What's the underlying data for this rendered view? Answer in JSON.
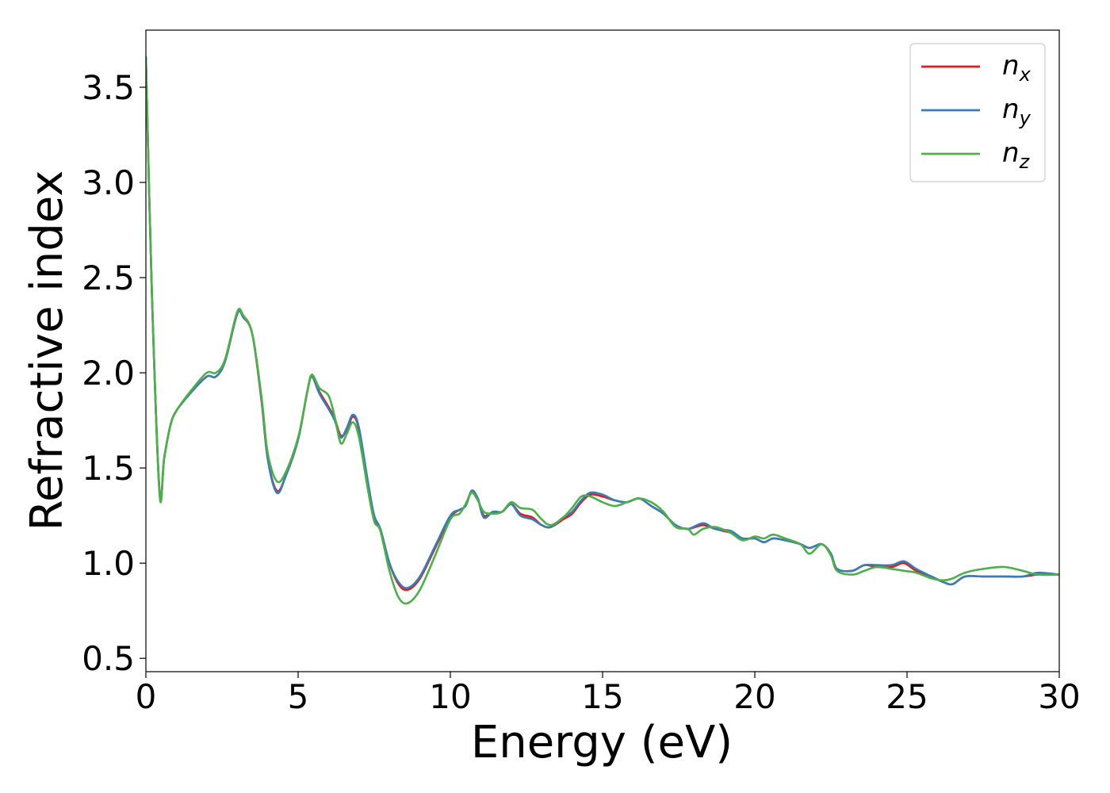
{
  "chart_data": {
    "type": "line",
    "title": "",
    "xlabel": "Energy (eV)",
    "ylabel": "Refractive index",
    "xlim": [
      0,
      30
    ],
    "ylim": [
      0.43,
      3.8
    ],
    "xticks": [
      "0",
      "5",
      "10",
      "15",
      "20",
      "25",
      "30"
    ],
    "yticks": [
      "0.5",
      "1.0",
      "1.5",
      "2.0",
      "2.5",
      "3.0",
      "3.5"
    ],
    "grid": false,
    "legend_position": "top-right",
    "series": [
      {
        "name": "n",
        "subscript": "x",
        "color": "#e41a1c",
        "points": [
          [
            0,
            3.65
          ],
          [
            0.2,
            2.4
          ],
          [
            0.45,
            1.37
          ],
          [
            0.6,
            1.55
          ],
          [
            0.8,
            1.72
          ],
          [
            1.0,
            1.8
          ],
          [
            1.5,
            1.9
          ],
          [
            2.0,
            1.98
          ],
          [
            2.3,
            1.98
          ],
          [
            2.6,
            2.06
          ],
          [
            3.0,
            2.31
          ],
          [
            3.2,
            2.3
          ],
          [
            3.5,
            2.2
          ],
          [
            3.8,
            1.85
          ],
          [
            4.0,
            1.55
          ],
          [
            4.3,
            1.38
          ],
          [
            4.6,
            1.46
          ],
          [
            5.0,
            1.65
          ],
          [
            5.3,
            1.9
          ],
          [
            5.45,
            1.98
          ],
          [
            5.7,
            1.9
          ],
          [
            6.0,
            1.82
          ],
          [
            6.2,
            1.76
          ],
          [
            6.4,
            1.67
          ],
          [
            6.6,
            1.7
          ],
          [
            6.8,
            1.77
          ],
          [
            7.0,
            1.7
          ],
          [
            7.3,
            1.4
          ],
          [
            7.5,
            1.24
          ],
          [
            7.7,
            1.18
          ],
          [
            8.0,
            1.0
          ],
          [
            8.3,
            0.89
          ],
          [
            8.6,
            0.86
          ],
          [
            9.0,
            0.92
          ],
          [
            9.5,
            1.08
          ],
          [
            10.0,
            1.24
          ],
          [
            10.3,
            1.28
          ],
          [
            10.5,
            1.3
          ],
          [
            10.7,
            1.38
          ],
          [
            10.9,
            1.34
          ],
          [
            11.1,
            1.25
          ],
          [
            11.4,
            1.27
          ],
          [
            11.7,
            1.27
          ],
          [
            12.0,
            1.31
          ],
          [
            12.3,
            1.26
          ],
          [
            12.7,
            1.24
          ],
          [
            13.0,
            1.2
          ],
          [
            13.3,
            1.19
          ],
          [
            13.7,
            1.23
          ],
          [
            14.0,
            1.26
          ],
          [
            14.3,
            1.32
          ],
          [
            14.6,
            1.36
          ],
          [
            15.0,
            1.35
          ],
          [
            15.4,
            1.33
          ],
          [
            15.8,
            1.32
          ],
          [
            16.2,
            1.34
          ],
          [
            16.6,
            1.3
          ],
          [
            17.0,
            1.26
          ],
          [
            17.4,
            1.2
          ],
          [
            17.8,
            1.18
          ],
          [
            18.3,
            1.2
          ],
          [
            18.7,
            1.18
          ],
          [
            19.2,
            1.16
          ],
          [
            19.6,
            1.13
          ],
          [
            20.0,
            1.13
          ],
          [
            20.3,
            1.11
          ],
          [
            20.6,
            1.13
          ],
          [
            21.0,
            1.12
          ],
          [
            21.5,
            1.1
          ],
          [
            21.8,
            1.08
          ],
          [
            22.2,
            1.1
          ],
          [
            22.5,
            1.05
          ],
          [
            22.7,
            0.97
          ],
          [
            23.2,
            0.96
          ],
          [
            23.6,
            0.99
          ],
          [
            24.0,
            0.98
          ],
          [
            24.5,
            0.98
          ],
          [
            24.9,
            1.0
          ],
          [
            25.3,
            0.96
          ],
          [
            25.8,
            0.93
          ],
          [
            26.2,
            0.9
          ],
          [
            26.5,
            0.89
          ],
          [
            26.9,
            0.93
          ],
          [
            27.5,
            0.93
          ],
          [
            28.2,
            0.93
          ],
          [
            28.8,
            0.93
          ],
          [
            29.3,
            0.94
          ],
          [
            30.0,
            0.94
          ]
        ]
      },
      {
        "name": "n",
        "subscript": "y",
        "color": "#377eb8",
        "points": [
          [
            0,
            3.65
          ],
          [
            0.2,
            2.4
          ],
          [
            0.45,
            1.37
          ],
          [
            0.6,
            1.55
          ],
          [
            0.8,
            1.72
          ],
          [
            1.0,
            1.8
          ],
          [
            1.5,
            1.9
          ],
          [
            2.0,
            1.98
          ],
          [
            2.3,
            1.98
          ],
          [
            2.6,
            2.06
          ],
          [
            3.0,
            2.31
          ],
          [
            3.2,
            2.29
          ],
          [
            3.5,
            2.2
          ],
          [
            3.8,
            1.86
          ],
          [
            4.0,
            1.55
          ],
          [
            4.3,
            1.37
          ],
          [
            4.6,
            1.46
          ],
          [
            5.0,
            1.65
          ],
          [
            5.3,
            1.9
          ],
          [
            5.45,
            1.98
          ],
          [
            5.7,
            1.89
          ],
          [
            6.0,
            1.81
          ],
          [
            6.2,
            1.75
          ],
          [
            6.4,
            1.66
          ],
          [
            6.6,
            1.71
          ],
          [
            6.8,
            1.78
          ],
          [
            7.0,
            1.71
          ],
          [
            7.3,
            1.42
          ],
          [
            7.5,
            1.25
          ],
          [
            7.7,
            1.18
          ],
          [
            8.0,
            1.0
          ],
          [
            8.3,
            0.9
          ],
          [
            8.6,
            0.87
          ],
          [
            9.0,
            0.93
          ],
          [
            9.5,
            1.09
          ],
          [
            10.0,
            1.25
          ],
          [
            10.3,
            1.28
          ],
          [
            10.5,
            1.3
          ],
          [
            10.7,
            1.38
          ],
          [
            10.9,
            1.34
          ],
          [
            11.1,
            1.24
          ],
          [
            11.4,
            1.27
          ],
          [
            11.7,
            1.27
          ],
          [
            12.0,
            1.31
          ],
          [
            12.3,
            1.25
          ],
          [
            12.7,
            1.23
          ],
          [
            13.0,
            1.2
          ],
          [
            13.3,
            1.19
          ],
          [
            13.7,
            1.24
          ],
          [
            14.0,
            1.27
          ],
          [
            14.3,
            1.33
          ],
          [
            14.6,
            1.37
          ],
          [
            15.0,
            1.36
          ],
          [
            15.4,
            1.33
          ],
          [
            15.8,
            1.32
          ],
          [
            16.2,
            1.34
          ],
          [
            16.6,
            1.3
          ],
          [
            17.0,
            1.26
          ],
          [
            17.4,
            1.2
          ],
          [
            17.8,
            1.18
          ],
          [
            18.3,
            1.21
          ],
          [
            18.7,
            1.18
          ],
          [
            19.2,
            1.17
          ],
          [
            19.6,
            1.13
          ],
          [
            20.0,
            1.13
          ],
          [
            20.3,
            1.11
          ],
          [
            20.6,
            1.13
          ],
          [
            21.0,
            1.12
          ],
          [
            21.5,
            1.1
          ],
          [
            21.8,
            1.08
          ],
          [
            22.2,
            1.1
          ],
          [
            22.5,
            1.05
          ],
          [
            22.7,
            0.97
          ],
          [
            23.2,
            0.96
          ],
          [
            23.6,
            0.99
          ],
          [
            24.0,
            0.99
          ],
          [
            24.5,
            0.99
          ],
          [
            24.9,
            1.01
          ],
          [
            25.3,
            0.97
          ],
          [
            25.8,
            0.93
          ],
          [
            26.2,
            0.9
          ],
          [
            26.5,
            0.89
          ],
          [
            26.9,
            0.93
          ],
          [
            27.5,
            0.93
          ],
          [
            28.2,
            0.93
          ],
          [
            28.8,
            0.93
          ],
          [
            29.3,
            0.95
          ],
          [
            30.0,
            0.94
          ]
        ]
      },
      {
        "name": "n",
        "subscript": "z",
        "color": "#4daf4a",
        "points": [
          [
            0,
            3.66
          ],
          [
            0.2,
            2.4
          ],
          [
            0.45,
            1.36
          ],
          [
            0.6,
            1.55
          ],
          [
            0.8,
            1.72
          ],
          [
            1.0,
            1.8
          ],
          [
            1.5,
            1.91
          ],
          [
            2.0,
            2.0
          ],
          [
            2.3,
            2.0
          ],
          [
            2.6,
            2.07
          ],
          [
            3.0,
            2.32
          ],
          [
            3.2,
            2.3
          ],
          [
            3.5,
            2.2
          ],
          [
            3.8,
            1.87
          ],
          [
            4.0,
            1.58
          ],
          [
            4.3,
            1.43
          ],
          [
            4.6,
            1.48
          ],
          [
            5.0,
            1.66
          ],
          [
            5.3,
            1.9
          ],
          [
            5.45,
            1.99
          ],
          [
            5.7,
            1.92
          ],
          [
            6.0,
            1.88
          ],
          [
            6.2,
            1.77
          ],
          [
            6.4,
            1.63
          ],
          [
            6.6,
            1.68
          ],
          [
            6.8,
            1.74
          ],
          [
            7.0,
            1.66
          ],
          [
            7.3,
            1.38
          ],
          [
            7.5,
            1.22
          ],
          [
            7.7,
            1.17
          ],
          [
            8.0,
            0.96
          ],
          [
            8.3,
            0.82
          ],
          [
            8.6,
            0.79
          ],
          [
            9.0,
            0.86
          ],
          [
            9.5,
            1.04
          ],
          [
            10.0,
            1.23
          ],
          [
            10.3,
            1.26
          ],
          [
            10.5,
            1.31
          ],
          [
            10.7,
            1.37
          ],
          [
            10.9,
            1.33
          ],
          [
            11.1,
            1.27
          ],
          [
            11.4,
            1.26
          ],
          [
            11.7,
            1.27
          ],
          [
            12.0,
            1.32
          ],
          [
            12.3,
            1.29
          ],
          [
            12.7,
            1.28
          ],
          [
            13.0,
            1.23
          ],
          [
            13.3,
            1.2
          ],
          [
            13.7,
            1.24
          ],
          [
            14.0,
            1.29
          ],
          [
            14.3,
            1.35
          ],
          [
            14.6,
            1.35
          ],
          [
            15.0,
            1.32
          ],
          [
            15.4,
            1.3
          ],
          [
            15.8,
            1.32
          ],
          [
            16.2,
            1.34
          ],
          [
            16.6,
            1.32
          ],
          [
            17.0,
            1.27
          ],
          [
            17.4,
            1.19
          ],
          [
            17.8,
            1.18
          ],
          [
            18.0,
            1.15
          ],
          [
            18.3,
            1.18
          ],
          [
            18.7,
            1.19
          ],
          [
            19.2,
            1.16
          ],
          [
            19.6,
            1.12
          ],
          [
            20.0,
            1.14
          ],
          [
            20.3,
            1.13
          ],
          [
            20.6,
            1.15
          ],
          [
            21.0,
            1.13
          ],
          [
            21.5,
            1.1
          ],
          [
            21.8,
            1.05
          ],
          [
            22.2,
            1.1
          ],
          [
            22.5,
            1.04
          ],
          [
            22.7,
            0.96
          ],
          [
            23.2,
            0.94
          ],
          [
            23.6,
            0.96
          ],
          [
            24.0,
            0.98
          ],
          [
            24.5,
            0.97
          ],
          [
            24.9,
            0.96
          ],
          [
            25.3,
            0.95
          ],
          [
            25.8,
            0.92
          ],
          [
            26.2,
            0.91
          ],
          [
            26.5,
            0.92
          ],
          [
            26.9,
            0.95
          ],
          [
            27.5,
            0.97
          ],
          [
            28.2,
            0.98
          ],
          [
            28.8,
            0.96
          ],
          [
            29.3,
            0.94
          ],
          [
            30.0,
            0.94
          ]
        ]
      }
    ]
  }
}
